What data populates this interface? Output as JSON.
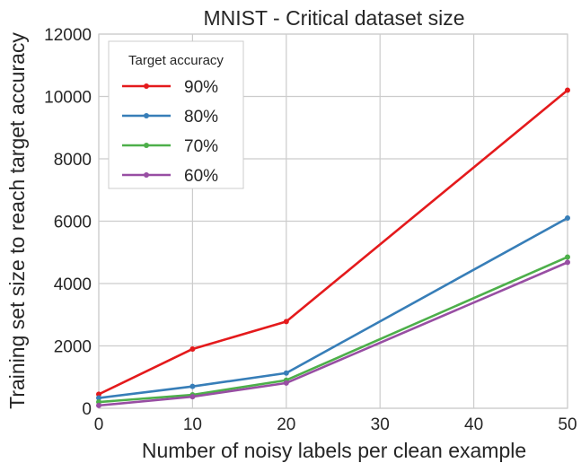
{
  "chart_data": {
    "type": "line",
    "title": "MNIST - Critical dataset size",
    "xlabel": "Number of noisy labels per clean example",
    "ylabel": "Training set size to reach target accuracy",
    "x": [
      0,
      10,
      20,
      50
    ],
    "xlim": [
      0,
      50
    ],
    "ylim": [
      0,
      12000
    ],
    "xticks": [
      0,
      10,
      20,
      30,
      40,
      50
    ],
    "yticks": [
      0,
      2000,
      4000,
      6000,
      8000,
      10000,
      12000
    ],
    "grid": true,
    "legend": {
      "title": "Target accuracy",
      "position": "top-left"
    },
    "series": [
      {
        "name": "90%",
        "color": "#e41a1c",
        "values": [
          450,
          1900,
          2780,
          10200
        ]
      },
      {
        "name": "80%",
        "color": "#377eb8",
        "values": [
          330,
          700,
          1130,
          6100
        ]
      },
      {
        "name": "70%",
        "color": "#4daf4a",
        "values": [
          200,
          430,
          900,
          4850
        ]
      },
      {
        "name": "60%",
        "color": "#984ea3",
        "values": [
          90,
          370,
          810,
          4680
        ]
      }
    ]
  }
}
